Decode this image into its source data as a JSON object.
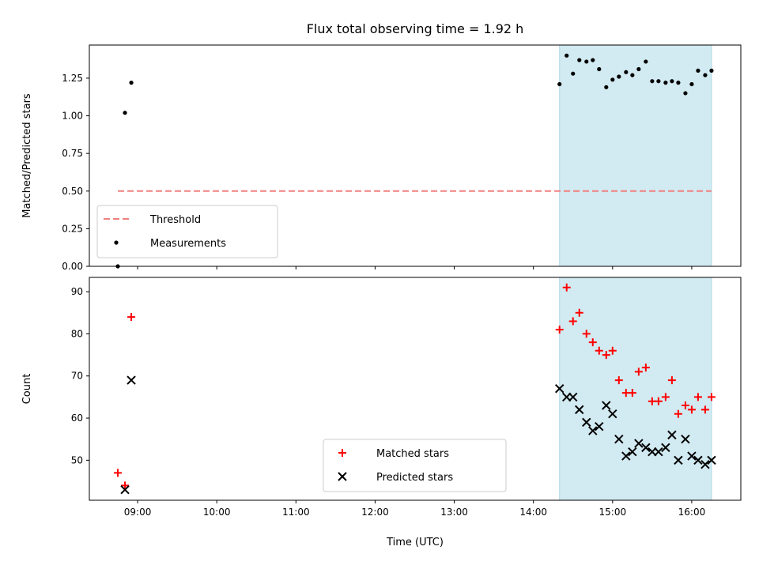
{
  "title": "Flux total observing time = 1.92 h",
  "colors": {
    "threshold": "#f08080",
    "measurement": "#000000",
    "matched": "#ff0000",
    "predicted": "#000000",
    "shade": "#add8e6"
  },
  "chart_data": [
    {
      "type": "scatter",
      "panel": "top",
      "ylabel": "Matched/Predicted stars",
      "xlim": [
        8.39,
        16.62
      ],
      "ylim": [
        0.0,
        1.47
      ],
      "yticks": [
        0.0,
        0.25,
        0.5,
        0.75,
        1.0,
        1.25
      ],
      "ytick_labels": [
        "0.00",
        "0.25",
        "0.50",
        "0.75",
        "1.00",
        "1.25"
      ],
      "shaded_region": [
        14.33,
        16.25
      ],
      "grid": false,
      "legend_position": "lower-left",
      "threshold": {
        "name": "Threshold",
        "value": 0.5,
        "x_range": [
          8.75,
          16.25
        ]
      },
      "series": [
        {
          "name": "Measurements",
          "marker": "dot",
          "x": [
            8.75,
            8.84,
            8.92,
            14.33,
            14.42,
            14.5,
            14.58,
            14.67,
            14.75,
            14.83,
            14.92,
            15.0,
            15.08,
            15.17,
            15.25,
            15.33,
            15.42,
            15.5,
            15.58,
            15.67,
            15.75,
            15.83,
            15.92,
            16.0,
            16.08,
            16.17,
            16.25
          ],
          "y": [
            0.0,
            1.02,
            1.22,
            1.21,
            1.4,
            1.28,
            1.37,
            1.36,
            1.37,
            1.31,
            1.19,
            1.24,
            1.26,
            1.29,
            1.27,
            1.31,
            1.36,
            1.23,
            1.23,
            1.22,
            1.23,
            1.22,
            1.15,
            1.21,
            1.3,
            1.27,
            1.3
          ]
        }
      ]
    },
    {
      "type": "scatter",
      "panel": "bottom",
      "xlabel": "Time (UTC)",
      "ylabel": "Count",
      "xlim": [
        8.39,
        16.62
      ],
      "ylim": [
        40.5,
        93.4
      ],
      "xticks": [
        9,
        10,
        11,
        12,
        13,
        14,
        15,
        16
      ],
      "xtick_labels": [
        "09:00",
        "10:00",
        "11:00",
        "12:00",
        "13:00",
        "14:00",
        "15:00",
        "16:00"
      ],
      "yticks": [
        50,
        60,
        70,
        80,
        90
      ],
      "ytick_labels": [
        "50",
        "60",
        "70",
        "80",
        "90"
      ],
      "shaded_region": [
        14.33,
        16.25
      ],
      "grid": false,
      "legend_position": "lower-center",
      "series": [
        {
          "name": "Matched stars",
          "marker": "plus",
          "x": [
            8.75,
            8.84,
            8.92,
            14.33,
            14.42,
            14.5,
            14.58,
            14.67,
            14.75,
            14.83,
            14.92,
            15.0,
            15.08,
            15.17,
            15.25,
            15.33,
            15.42,
            15.5,
            15.58,
            15.67,
            15.75,
            15.83,
            15.92,
            16.0,
            16.08,
            16.17,
            16.25
          ],
          "y": [
            47,
            44,
            84,
            81,
            91,
            83,
            85,
            80,
            78,
            76,
            75,
            76,
            69,
            66,
            66,
            71,
            72,
            64,
            64,
            65,
            69,
            61,
            63,
            62,
            65,
            62,
            65
          ]
        },
        {
          "name": "Predicted stars",
          "marker": "x",
          "x": [
            8.84,
            8.92,
            14.33,
            14.42,
            14.5,
            14.58,
            14.67,
            14.75,
            14.83,
            14.92,
            15.0,
            15.08,
            15.17,
            15.25,
            15.33,
            15.42,
            15.5,
            15.58,
            15.67,
            15.75,
            15.83,
            15.92,
            16.0,
            16.08,
            16.17,
            16.25
          ],
          "y": [
            43,
            69,
            67,
            65,
            65,
            62,
            59,
            57,
            58,
            63,
            61,
            55,
            51,
            52,
            54,
            53,
            52,
            52,
            53,
            56,
            50,
            55,
            51,
            50,
            49,
            50
          ]
        }
      ]
    }
  ]
}
